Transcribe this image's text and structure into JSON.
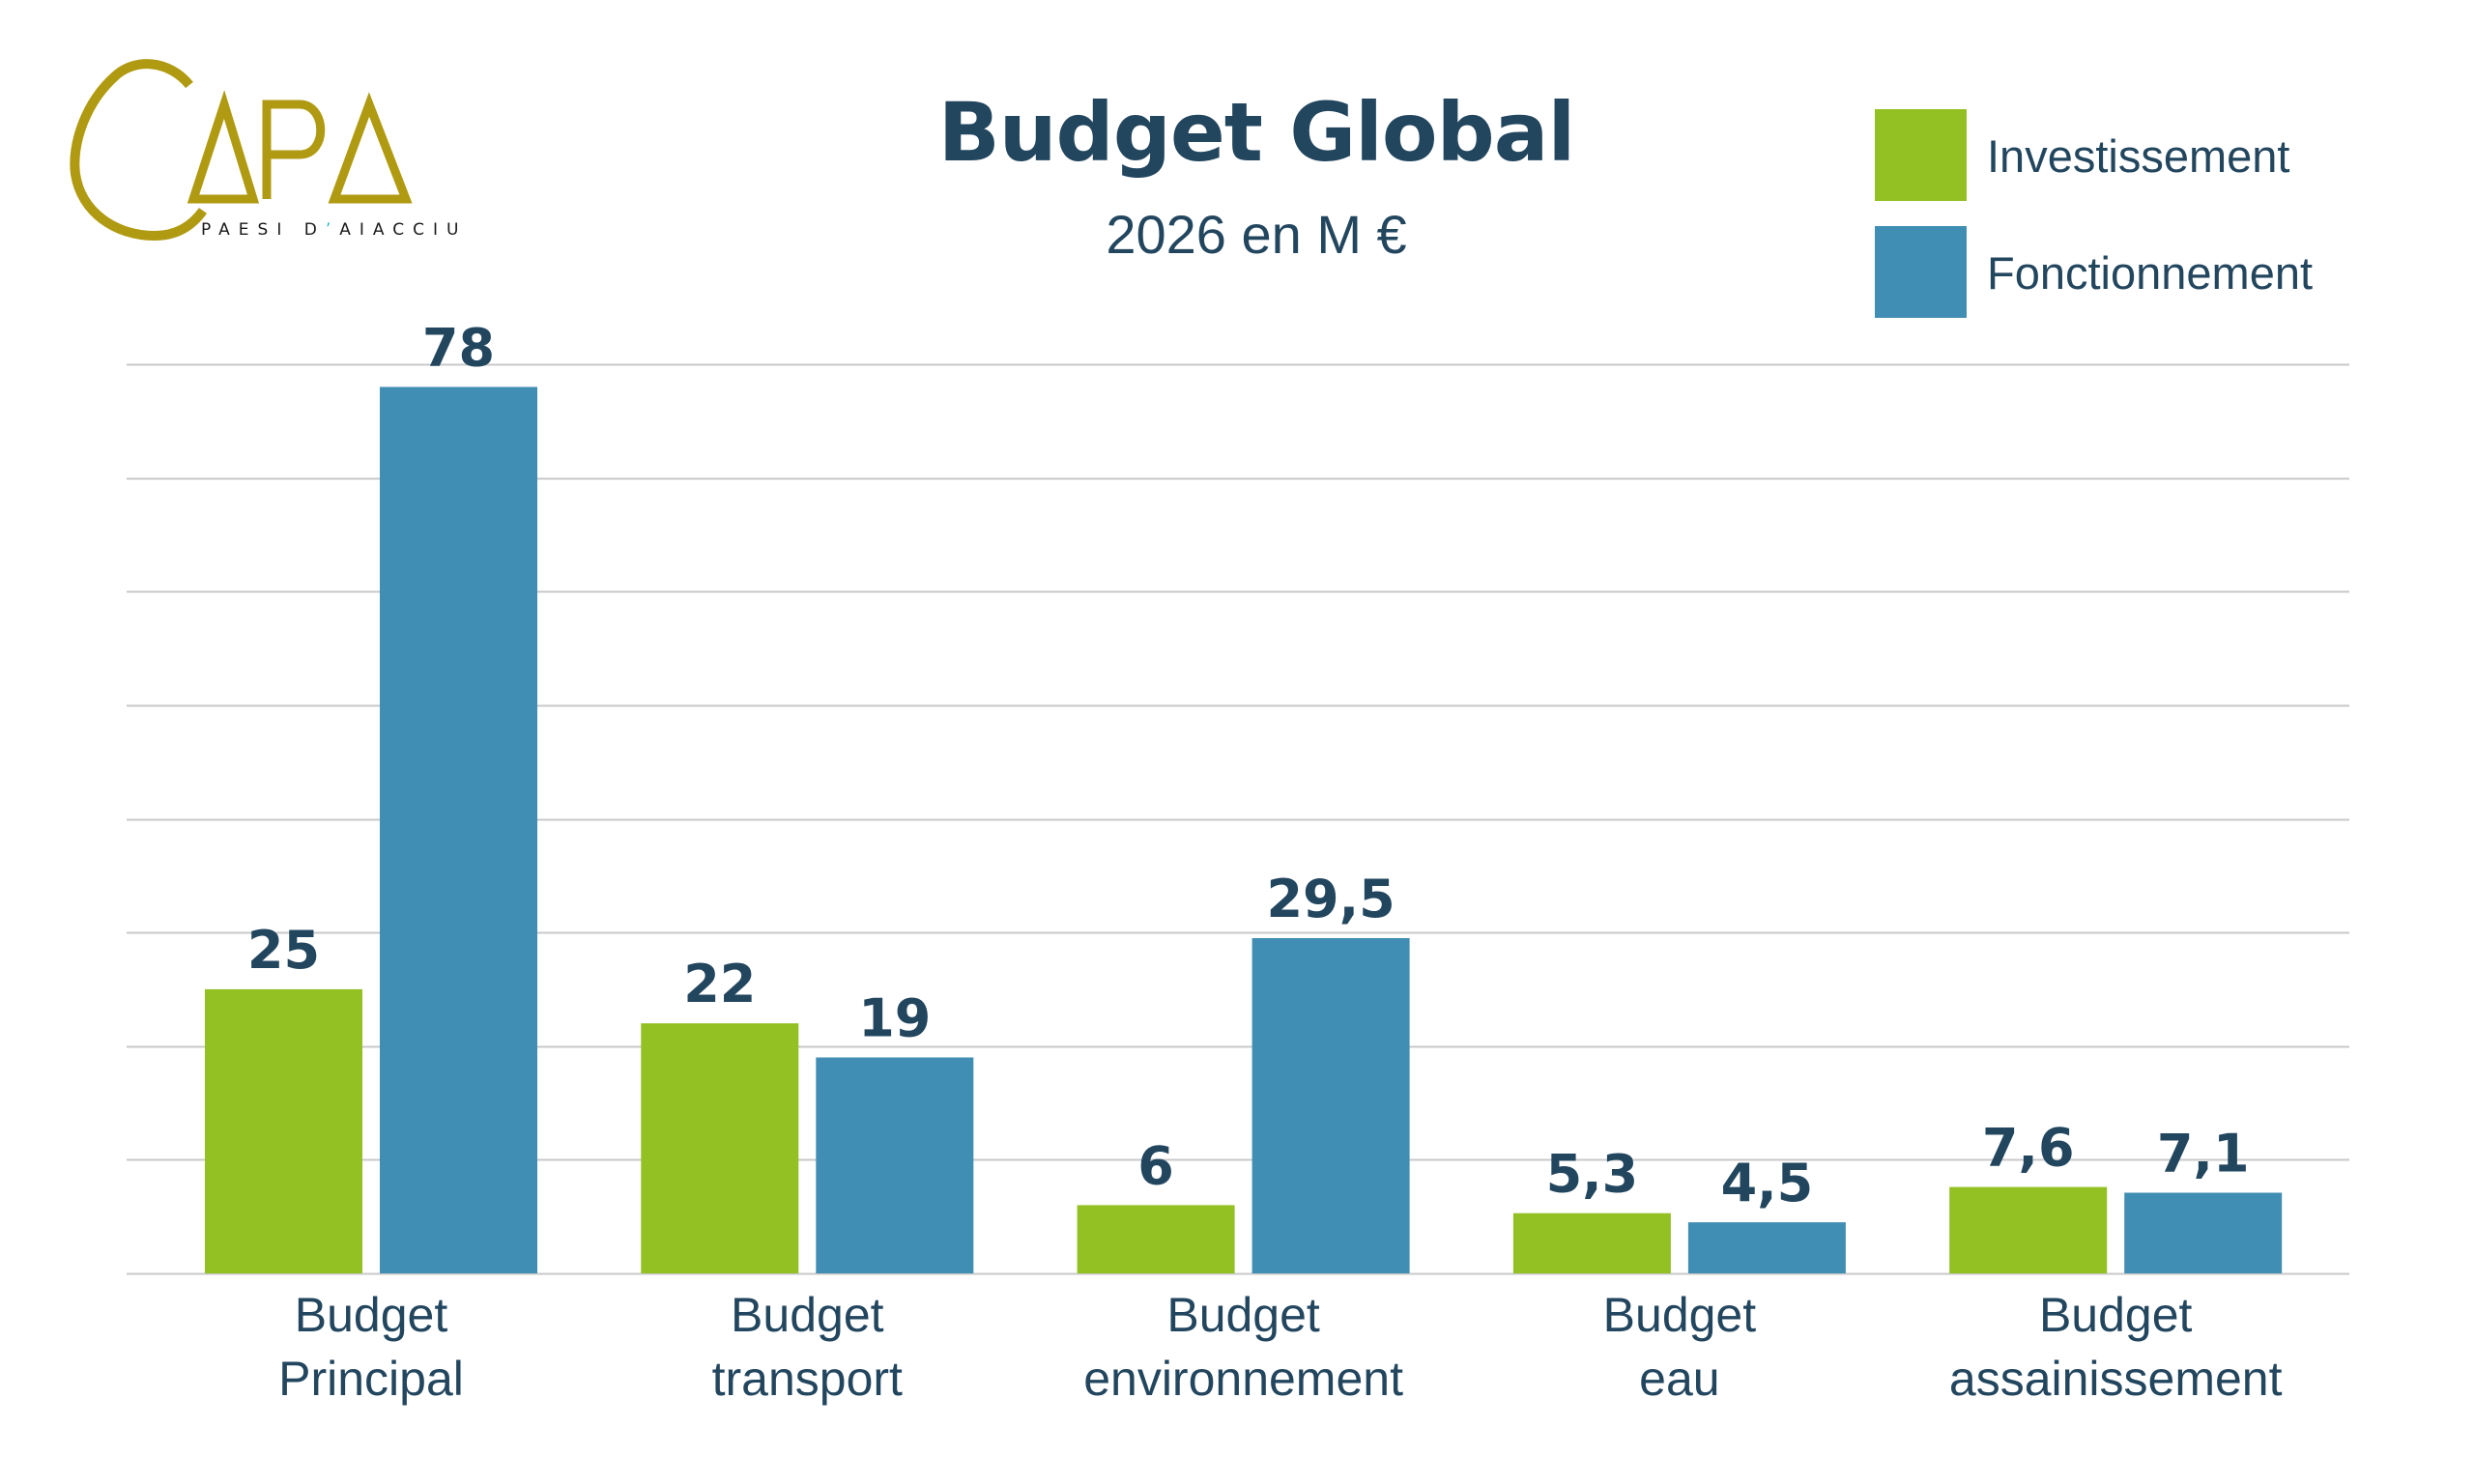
{
  "logo": {
    "name": "CAPA",
    "tagline_part1": "PAESI D",
    "tagline_apostrophe": "’",
    "tagline_part2": "AIACCIU",
    "gold_color": "#b09a12",
    "accent_color": "#2bb3c8"
  },
  "chart_data": {
    "type": "bar",
    "title": "Budget Global",
    "subtitle": "2026 en M€",
    "subtitle_display": "2026 en M €",
    "xlabel": "",
    "ylabel": "",
    "ylim": [
      0,
      80
    ],
    "y_grid_step": 10,
    "grid": true,
    "legend_position": "top-right",
    "categories": [
      [
        "Budget",
        "Principal"
      ],
      [
        "Budget",
        "transport"
      ],
      [
        "Budget",
        "environnement"
      ],
      [
        "Budget",
        "eau"
      ],
      [
        "Budget",
        "assainissement"
      ]
    ],
    "series": [
      {
        "name": "Investissement",
        "color": "#93c023",
        "values": [
          25,
          22,
          6,
          5.3,
          7.6
        ],
        "labels": [
          "25",
          "22",
          "6",
          "5,3",
          "7,6"
        ]
      },
      {
        "name": "Fonctionnement",
        "color": "#418eb4",
        "values": [
          78,
          19,
          29.5,
          4.5,
          7.1
        ],
        "labels": [
          "78",
          "19",
          "29,5",
          "4,5",
          "7,1"
        ]
      }
    ]
  }
}
